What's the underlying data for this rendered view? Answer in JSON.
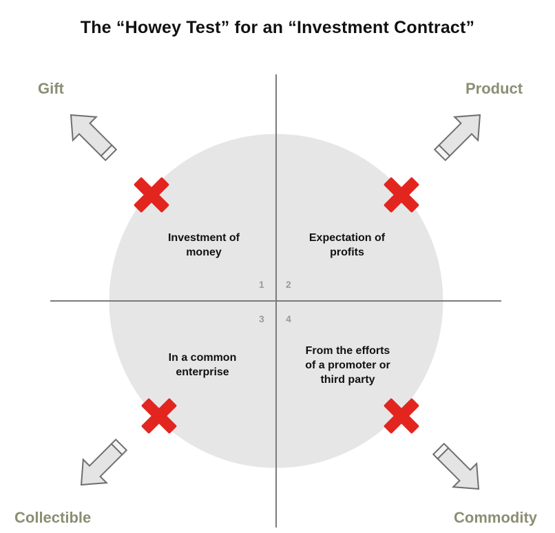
{
  "title": "The “Howey Test” for an “Investment Contract”",
  "colors": {
    "circle_fill": "#e6e6e6",
    "axis_line": "#7a7a7a",
    "corner_label": "#8c8e74",
    "cross": "#e3251f",
    "arrow_fill": "#e4e4e4",
    "arrow_stroke": "#6e6e6e",
    "quadrant_number": "#9a9a9a"
  },
  "corners": {
    "top_left": "Gift",
    "top_right": "Product",
    "bottom_left": "Collectible",
    "bottom_right": "Commodity"
  },
  "quadrants": [
    {
      "number": "1",
      "label": "Investment of\nmoney",
      "marker": "x-cross"
    },
    {
      "number": "2",
      "label": "Expectation of\nprofits",
      "marker": "x-cross"
    },
    {
      "number": "3",
      "label": "In a common\nenterprise",
      "marker": "x-cross"
    },
    {
      "number": "4",
      "label": "From the efforts\nof a promoter or\nthird party",
      "marker": "x-cross"
    }
  ],
  "icons": {
    "cross": "x-cross-icon",
    "arrow": "outward-arrow-icon"
  }
}
